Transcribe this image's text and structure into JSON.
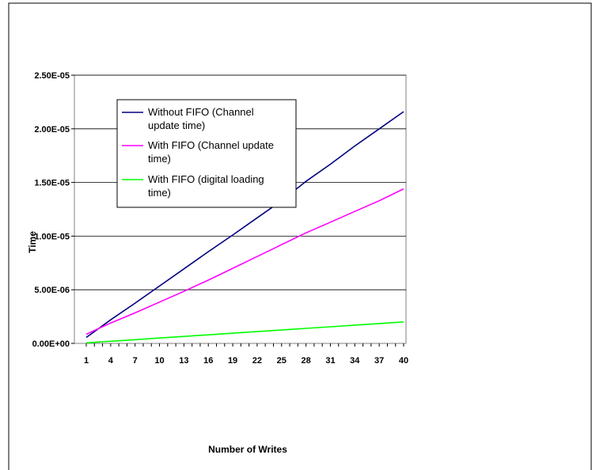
{
  "chart_data": {
    "type": "line",
    "title": "",
    "xlabel": "Number of Writes",
    "ylabel": "Time",
    "x_tick_labels": [
      "1",
      "4",
      "7",
      "10",
      "13",
      "16",
      "19",
      "22",
      "25",
      "28",
      "31",
      "34",
      "37",
      "40"
    ],
    "y_tick_labels": [
      "0.00E+00",
      "5.00E-06",
      "1.00E-05",
      "1.50E-05",
      "2.00E-05",
      "2.50E-05"
    ],
    "ylim": [
      0,
      2.5e-05
    ],
    "xlim": [
      1,
      40
    ],
    "grid": "horizontal",
    "legend_position": "top-left",
    "legend_text": {
      "s0_line1": "Without FIFO (Channel",
      "s0_line2": "update time)",
      "s1_line1": "With FIFO (Channel update",
      "s1_line2": "time)",
      "s2_line1": "With FIFO (digital loading",
      "s2_line2": "time)"
    },
    "series": [
      {
        "name": "Without FIFO (Channel update time)",
        "color": "#000080",
        "x": [
          1,
          4,
          7,
          10,
          13,
          16,
          19,
          22,
          25,
          28,
          31,
          34,
          37,
          40
        ],
        "y": [
          5.5e-07,
          2.2e-06,
          3.75e-06,
          5.35e-06,
          6.95e-06,
          8.55e-06,
          1.01e-05,
          1.17e-05,
          1.33e-05,
          1.51e-05,
          1.67e-05,
          1.84e-05,
          2e-05,
          2.16e-05
        ]
      },
      {
        "name": "With FIFO (Channel update time)",
        "color": "#ff00ff",
        "x": [
          1,
          4,
          7,
          10,
          13,
          16,
          19,
          22,
          25,
          28,
          31,
          34,
          37,
          40
        ],
        "y": [
          8.5e-07,
          1.9e-06,
          2.85e-06,
          3.85e-06,
          4.85e-06,
          5.9e-06,
          7e-06,
          8.1e-06,
          9.2e-06,
          1.03e-05,
          1.13e-05,
          1.23e-05,
          1.33e-05,
          1.44e-05
        ]
      },
      {
        "name": "With FIFO (digital loading time)",
        "color": "#00ff00",
        "x": [
          1,
          4,
          7,
          10,
          13,
          16,
          19,
          22,
          25,
          28,
          31,
          34,
          37,
          40
        ],
        "y": [
          5e-08,
          2e-07,
          3.5e-07,
          5e-07,
          6.5e-07,
          8e-07,
          9.5e-07,
          1.1e-06,
          1.25e-06,
          1.4e-06,
          1.55e-06,
          1.7e-06,
          1.85e-06,
          2e-06
        ]
      }
    ]
  }
}
